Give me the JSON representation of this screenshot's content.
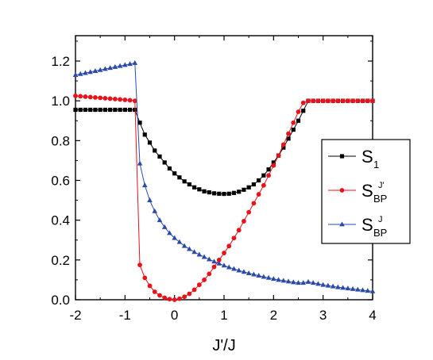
{
  "chart_data": {
    "type": "line",
    "title": "",
    "xlabel": "J'/J",
    "ylabel": "",
    "xlim": [
      -2,
      4
    ],
    "ylim": [
      0,
      1.3
    ],
    "x_ticks": [
      -2,
      -1,
      0,
      1,
      2,
      3,
      4
    ],
    "x_tick_labels": [
      "-2",
      "-1",
      "0",
      "1",
      "2",
      "3",
      "4"
    ],
    "y_ticks": [
      0.0,
      0.2,
      0.4,
      0.6,
      0.8,
      1.0,
      1.2
    ],
    "y_tick_labels": [
      "0.0",
      "0.2",
      "0.4",
      "0.6",
      "0.8",
      "1.0",
      "1.2"
    ],
    "grid": false,
    "legend_position": "right",
    "series": [
      {
        "name": "S_1",
        "label_main": "S",
        "label_sub": "1",
        "label_sup": "",
        "color": "#000000",
        "marker": "square",
        "x": [
          -2.0,
          -1.9,
          -1.8,
          -1.7,
          -1.6,
          -1.5,
          -1.4,
          -1.3,
          -1.2,
          -1.1,
          -1.0,
          -0.9,
          -0.8,
          -0.7,
          -0.6,
          -0.5,
          -0.4,
          -0.3,
          -0.2,
          -0.1,
          0.0,
          0.1,
          0.2,
          0.3,
          0.4,
          0.5,
          0.6,
          0.7,
          0.8,
          0.9,
          1.0,
          1.1,
          1.2,
          1.3,
          1.4,
          1.5,
          1.6,
          1.7,
          1.8,
          1.9,
          2.0,
          2.1,
          2.2,
          2.3,
          2.4,
          2.5,
          2.6,
          2.7,
          2.8,
          2.9,
          3.0,
          3.1,
          3.2,
          3.3,
          3.4,
          3.5,
          3.6,
          3.7,
          3.8,
          3.9,
          4.0
        ],
        "y": [
          0.955,
          0.955,
          0.955,
          0.955,
          0.955,
          0.955,
          0.955,
          0.955,
          0.955,
          0.955,
          0.955,
          0.955,
          0.955,
          0.89,
          0.83,
          0.79,
          0.75,
          0.72,
          0.69,
          0.66,
          0.635,
          0.615,
          0.595,
          0.58,
          0.565,
          0.555,
          0.545,
          0.54,
          0.535,
          0.533,
          0.532,
          0.533,
          0.537,
          0.543,
          0.553,
          0.565,
          0.58,
          0.6,
          0.625,
          0.655,
          0.69,
          0.725,
          0.765,
          0.81,
          0.855,
          0.9,
          0.95,
          1.0,
          1.0,
          1.0,
          1.0,
          1.0,
          1.0,
          1.0,
          1.0,
          1.0,
          1.0,
          1.0,
          1.0,
          1.0,
          1.0
        ]
      },
      {
        "name": "S_BP^J'",
        "label_main": "S",
        "label_sub": "BP",
        "label_sup": "J'",
        "color": "#e8121b",
        "marker": "circle",
        "x": [
          -2.0,
          -1.9,
          -1.8,
          -1.7,
          -1.6,
          -1.5,
          -1.4,
          -1.3,
          -1.2,
          -1.1,
          -1.0,
          -0.9,
          -0.8,
          -0.7,
          -0.6,
          -0.5,
          -0.4,
          -0.3,
          -0.2,
          -0.1,
          0.0,
          0.1,
          0.2,
          0.3,
          0.4,
          0.5,
          0.6,
          0.7,
          0.8,
          0.9,
          1.0,
          1.1,
          1.2,
          1.3,
          1.4,
          1.5,
          1.6,
          1.7,
          1.8,
          1.9,
          2.0,
          2.1,
          2.2,
          2.3,
          2.4,
          2.5,
          2.6,
          2.7,
          2.8,
          2.9,
          3.0,
          3.1,
          3.2,
          3.3,
          3.4,
          3.5,
          3.6,
          3.7,
          3.8,
          3.9,
          4.0
        ],
        "y": [
          1.025,
          1.023,
          1.021,
          1.019,
          1.017,
          1.015,
          1.013,
          1.011,
          1.009,
          1.007,
          1.005,
          1.003,
          1.0,
          0.175,
          0.11,
          0.07,
          0.04,
          0.022,
          0.01,
          0.003,
          0.0,
          0.005,
          0.015,
          0.03,
          0.05,
          0.075,
          0.1,
          0.13,
          0.165,
          0.2,
          0.235,
          0.27,
          0.31,
          0.35,
          0.395,
          0.44,
          0.485,
          0.53,
          0.575,
          0.625,
          0.675,
          0.725,
          0.78,
          0.835,
          0.89,
          0.945,
          0.99,
          1.0,
          1.0,
          1.0,
          1.0,
          1.0,
          1.0,
          1.0,
          1.0,
          1.0,
          1.0,
          1.0,
          1.0,
          1.0,
          1.0
        ]
      },
      {
        "name": "S_BP^J",
        "label_main": "S",
        "label_sub": "BP",
        "label_sup": "J",
        "color": "#2b4aa8",
        "marker": "triangle",
        "x": [
          -2.0,
          -1.9,
          -1.8,
          -1.7,
          -1.6,
          -1.5,
          -1.4,
          -1.3,
          -1.2,
          -1.1,
          -1.0,
          -0.9,
          -0.8,
          -0.7,
          -0.6,
          -0.5,
          -0.4,
          -0.3,
          -0.2,
          -0.1,
          0.0,
          0.1,
          0.2,
          0.3,
          0.4,
          0.5,
          0.6,
          0.7,
          0.8,
          0.9,
          1.0,
          1.1,
          1.2,
          1.3,
          1.4,
          1.5,
          1.6,
          1.7,
          1.8,
          1.9,
          2.0,
          2.1,
          2.2,
          2.3,
          2.4,
          2.5,
          2.6,
          2.7,
          2.8,
          2.9,
          3.0,
          3.1,
          3.2,
          3.3,
          3.4,
          3.5,
          3.6,
          3.7,
          3.8,
          3.9,
          4.0
        ],
        "y": [
          1.13,
          1.135,
          1.14,
          1.145,
          1.15,
          1.155,
          1.16,
          1.165,
          1.17,
          1.175,
          1.18,
          1.185,
          1.19,
          0.685,
          0.575,
          0.5,
          0.445,
          0.4,
          0.365,
          0.335,
          0.31,
          0.29,
          0.27,
          0.255,
          0.24,
          0.227,
          0.215,
          0.203,
          0.192,
          0.182,
          0.172,
          0.163,
          0.155,
          0.147,
          0.14,
          0.133,
          0.127,
          0.121,
          0.115,
          0.11,
          0.105,
          0.1,
          0.096,
          0.092,
          0.088,
          0.085,
          0.085,
          0.09,
          0.085,
          0.08,
          0.075,
          0.071,
          0.067,
          0.063,
          0.06,
          0.057,
          0.054,
          0.051,
          0.048,
          0.045,
          0.042
        ]
      }
    ]
  }
}
